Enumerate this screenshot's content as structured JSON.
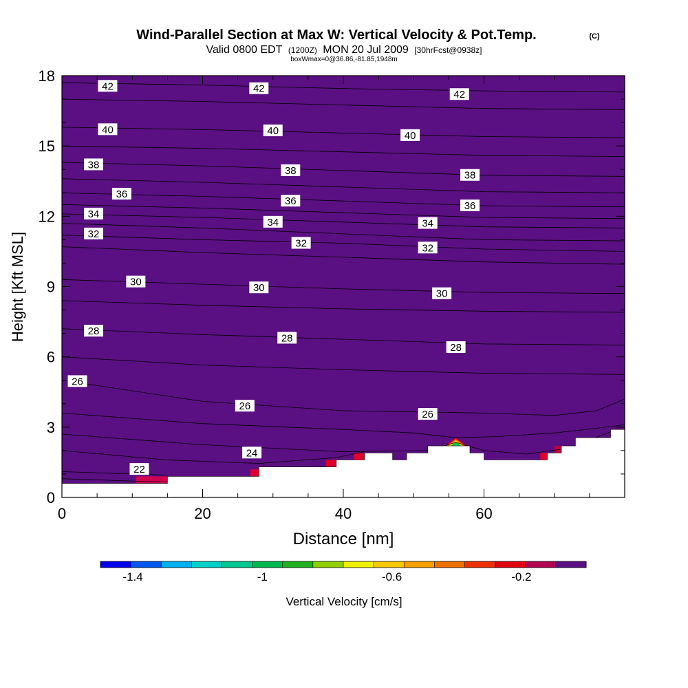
{
  "chart_data": {
    "type": "contour",
    "title": "Wind-Parallel Section at Max W: Vertical Velocity & Pot.Temp.",
    "title_mark": "(C)",
    "subtitle_valid": "Valid 0800 EDT",
    "subtitle_utc": "(1200Z)",
    "subtitle_date": "MON 20 Jul 2009",
    "subtitle_fcst": "[30hrFcst@0938z]",
    "subtitle_box": "boxWmax=0@36.86,-81.85,1948m",
    "xlabel": "Distance [nm]",
    "ylabel": "Height [Kft MSL]",
    "xlim": [
      0,
      80
    ],
    "ylim": [
      0,
      18
    ],
    "x_ticks": [
      0,
      20,
      40,
      60
    ],
    "y_ticks": [
      0,
      3,
      6,
      9,
      12,
      15,
      18
    ],
    "background_color": "#5a0f82",
    "terrain": [
      [
        0,
        0.6
      ],
      [
        15,
        0.6
      ],
      [
        15,
        0.9
      ],
      [
        28,
        0.9
      ],
      [
        28,
        1.3
      ],
      [
        39,
        1.3
      ],
      [
        39,
        1.6
      ],
      [
        43,
        1.6
      ],
      [
        43,
        1.9
      ],
      [
        47,
        1.9
      ],
      [
        47,
        1.6
      ],
      [
        49,
        1.6
      ],
      [
        49,
        1.9
      ],
      [
        52,
        1.9
      ],
      [
        52,
        2.2
      ],
      [
        58,
        2.2
      ],
      [
        58,
        1.9
      ],
      [
        60,
        1.9
      ],
      [
        60,
        1.6
      ],
      [
        69,
        1.6
      ],
      [
        69,
        1.9
      ],
      [
        71,
        1.9
      ],
      [
        71,
        2.2
      ],
      [
        73,
        2.2
      ],
      [
        73,
        2.55
      ],
      [
        78,
        2.55
      ],
      [
        78,
        2.9
      ],
      [
        80,
        2.9
      ]
    ],
    "theta_contours": [
      {
        "level": 42,
        "points": [
          [
            0,
            17.7
          ],
          [
            20,
            17.6
          ],
          [
            40,
            17.45
          ],
          [
            60,
            17.35
          ],
          [
            80,
            17.3
          ]
        ]
      },
      {
        "level": 41,
        "points": [
          [
            0,
            17.0
          ],
          [
            20,
            16.9
          ],
          [
            40,
            16.75
          ],
          [
            60,
            16.6
          ],
          [
            80,
            16.55
          ]
        ]
      },
      {
        "level": 40,
        "points": [
          [
            0,
            15.8
          ],
          [
            20,
            15.7
          ],
          [
            40,
            15.55
          ],
          [
            60,
            15.4
          ],
          [
            80,
            15.35
          ]
        ]
      },
      {
        "level": 39,
        "points": [
          [
            0,
            15.0
          ],
          [
            20,
            14.9
          ],
          [
            40,
            14.75
          ],
          [
            60,
            14.6
          ],
          [
            80,
            14.55
          ]
        ]
      },
      {
        "level": 38,
        "points": [
          [
            0,
            14.3
          ],
          [
            20,
            14.15
          ],
          [
            40,
            13.95
          ],
          [
            60,
            13.75
          ],
          [
            80,
            13.7
          ]
        ]
      },
      {
        "level": 37,
        "points": [
          [
            0,
            13.6
          ],
          [
            20,
            13.45
          ],
          [
            40,
            13.25
          ],
          [
            60,
            13.05
          ],
          [
            80,
            13.0
          ]
        ]
      },
      {
        "level": 36,
        "points": [
          [
            0,
            13.0
          ],
          [
            20,
            12.85
          ],
          [
            40,
            12.65
          ],
          [
            60,
            12.45
          ],
          [
            80,
            12.4
          ]
        ]
      },
      {
        "level": 35,
        "points": [
          [
            0,
            12.5
          ],
          [
            20,
            12.35
          ],
          [
            40,
            12.15
          ],
          [
            60,
            11.95
          ],
          [
            80,
            11.9
          ]
        ]
      },
      {
        "level": 34,
        "points": [
          [
            0,
            12.1
          ],
          [
            20,
            11.95
          ],
          [
            40,
            11.75
          ],
          [
            60,
            11.55
          ],
          [
            80,
            11.5
          ]
        ]
      },
      {
        "level": 33,
        "points": [
          [
            0,
            11.7
          ],
          [
            20,
            11.5
          ],
          [
            40,
            11.25
          ],
          [
            60,
            11.0
          ],
          [
            80,
            10.95
          ]
        ]
      },
      {
        "level": 32,
        "points": [
          [
            0,
            11.2
          ],
          [
            20,
            11.0
          ],
          [
            40,
            10.85
          ],
          [
            60,
            10.6
          ],
          [
            80,
            10.5
          ]
        ]
      },
      {
        "level": 31,
        "points": [
          [
            0,
            10.7
          ],
          [
            20,
            10.45
          ],
          [
            40,
            10.25
          ],
          [
            60,
            10.05
          ],
          [
            80,
            9.95
          ]
        ]
      },
      {
        "level": 30,
        "points": [
          [
            0,
            9.3
          ],
          [
            20,
            9.1
          ],
          [
            40,
            8.9
          ],
          [
            60,
            8.75
          ],
          [
            80,
            8.7
          ]
        ]
      },
      {
        "level": 29,
        "points": [
          [
            0,
            8.4
          ],
          [
            20,
            8.2
          ],
          [
            40,
            8.05
          ],
          [
            60,
            7.95
          ],
          [
            80,
            7.9
          ]
        ]
      },
      {
        "level": 28,
        "points": [
          [
            0,
            7.2
          ],
          [
            20,
            6.95
          ],
          [
            40,
            6.75
          ],
          [
            60,
            6.55
          ],
          [
            80,
            6.5
          ]
        ]
      },
      {
        "level": 27,
        "points": [
          [
            0,
            6.0
          ],
          [
            20,
            5.65
          ],
          [
            40,
            5.45
          ],
          [
            60,
            5.3
          ],
          [
            80,
            5.25
          ]
        ]
      },
      {
        "level": 26,
        "points": [
          [
            0,
            5.0
          ],
          [
            20,
            4.1
          ],
          [
            40,
            3.7
          ],
          [
            60,
            3.6
          ],
          [
            70,
            3.5
          ],
          [
            76,
            3.7
          ],
          [
            80,
            4.2
          ]
        ]
      },
      {
        "level": 25,
        "points": [
          [
            0,
            3.6
          ],
          [
            20,
            3.15
          ],
          [
            40,
            2.9
          ],
          [
            50,
            2.75
          ],
          [
            56,
            2.55
          ],
          [
            62,
            2.6
          ],
          [
            70,
            2.75
          ],
          [
            76,
            2.95
          ],
          [
            80,
            3.1
          ]
        ]
      },
      {
        "level": 24,
        "points": [
          [
            0,
            2.7
          ],
          [
            20,
            2.25
          ],
          [
            40,
            1.95
          ],
          [
            52,
            2.0
          ],
          [
            56,
            2.35
          ],
          [
            60,
            2.0
          ],
          [
            66,
            1.85
          ],
          [
            72,
            2.1
          ],
          [
            78,
            2.8
          ]
        ]
      },
      {
        "level": 23,
        "points": [
          [
            0,
            2.0
          ],
          [
            15,
            1.6
          ],
          [
            28,
            1.45
          ],
          [
            39,
            1.7
          ],
          [
            43,
            1.95
          ]
        ]
      },
      {
        "level": 22,
        "points": [
          [
            0,
            1.1
          ],
          [
            10,
            1.0
          ],
          [
            15,
            0.95
          ]
        ]
      },
      {
        "level": 21,
        "points": [
          [
            0,
            0.8
          ],
          [
            8,
            0.72
          ],
          [
            15,
            0.65
          ]
        ]
      }
    ],
    "contour_labels": [
      {
        "text": "42",
        "x": 6.5,
        "y": 17.55
      },
      {
        "text": "42",
        "x": 28,
        "y": 17.45
      },
      {
        "text": "42",
        "x": 56.5,
        "y": 17.2
      },
      {
        "text": "40",
        "x": 6.5,
        "y": 15.7
      },
      {
        "text": "40",
        "x": 30,
        "y": 15.65
      },
      {
        "text": "40",
        "x": 49.5,
        "y": 15.45
      },
      {
        "text": "38",
        "x": 4.5,
        "y": 14.2
      },
      {
        "text": "38",
        "x": 32.5,
        "y": 13.95
      },
      {
        "text": "38",
        "x": 58,
        "y": 13.75
      },
      {
        "text": "36",
        "x": 8.5,
        "y": 12.95
      },
      {
        "text": "36",
        "x": 32.5,
        "y": 12.65
      },
      {
        "text": "36",
        "x": 58,
        "y": 12.45
      },
      {
        "text": "34",
        "x": 4.5,
        "y": 12.1
      },
      {
        "text": "34",
        "x": 30,
        "y": 11.75
      },
      {
        "text": "34",
        "x": 52,
        "y": 11.7
      },
      {
        "text": "32",
        "x": 4.5,
        "y": 11.25
      },
      {
        "text": "32",
        "x": 34,
        "y": 10.85
      },
      {
        "text": "32",
        "x": 52,
        "y": 10.65
      },
      {
        "text": "30",
        "x": 10.5,
        "y": 9.2
      },
      {
        "text": "30",
        "x": 28,
        "y": 8.95
      },
      {
        "text": "30",
        "x": 54,
        "y": 8.7
      },
      {
        "text": "28",
        "x": 4.5,
        "y": 7.1
      },
      {
        "text": "28",
        "x": 32,
        "y": 6.8
      },
      {
        "text": "28",
        "x": 56,
        "y": 6.4
      },
      {
        "text": "26",
        "x": 2.2,
        "y": 4.95
      },
      {
        "text": "26",
        "x": 26,
        "y": 3.9
      },
      {
        "text": "26",
        "x": 52,
        "y": 3.55
      },
      {
        "text": "24",
        "x": 27,
        "y": 1.9
      },
      {
        "text": "22",
        "x": 11,
        "y": 1.2
      }
    ],
    "w_patches": [
      {
        "x": [
          10.5,
          15
        ],
        "y_base": 0.6,
        "height": 0.3,
        "color": "#d10050"
      },
      {
        "x": [
          26.8,
          28
        ],
        "y_base": 0.9,
        "height": 0.3,
        "color": "#e0002a"
      },
      {
        "x": [
          37.5,
          39
        ],
        "y_base": 1.3,
        "height": 0.3,
        "color": "#e0002a"
      },
      {
        "x": [
          41.5,
          43
        ],
        "y_base": 1.6,
        "height": 0.3,
        "color": "#e0002a"
      },
      {
        "x": [
          68,
          69
        ],
        "y_base": 1.6,
        "height": 0.3,
        "color": "#e0002a"
      },
      {
        "x": [
          70,
          71
        ],
        "y_base": 1.9,
        "height": 0.3,
        "color": "#c0003a"
      }
    ],
    "w_peak": {
      "x": 56,
      "y_base": 2.2,
      "height": 0.35
    },
    "colorbar": {
      "label": "Vertical Velocity [cm/s]",
      "tick_labels": [
        "-1.4",
        "-1",
        "-0.6",
        "-0.2"
      ],
      "tick_values": [
        -1.4,
        -1.0,
        -0.6,
        -0.2
      ],
      "range": [
        -1.5,
        0.0
      ],
      "colors": [
        "#0000ee",
        "#0058f0",
        "#00b0f0",
        "#00d0c8",
        "#00c890",
        "#00b850",
        "#20b020",
        "#90d000",
        "#f0f000",
        "#f8c800",
        "#f8a000",
        "#f07000",
        "#f03000",
        "#e00010",
        "#b00050",
        "#5a0f82"
      ]
    }
  }
}
